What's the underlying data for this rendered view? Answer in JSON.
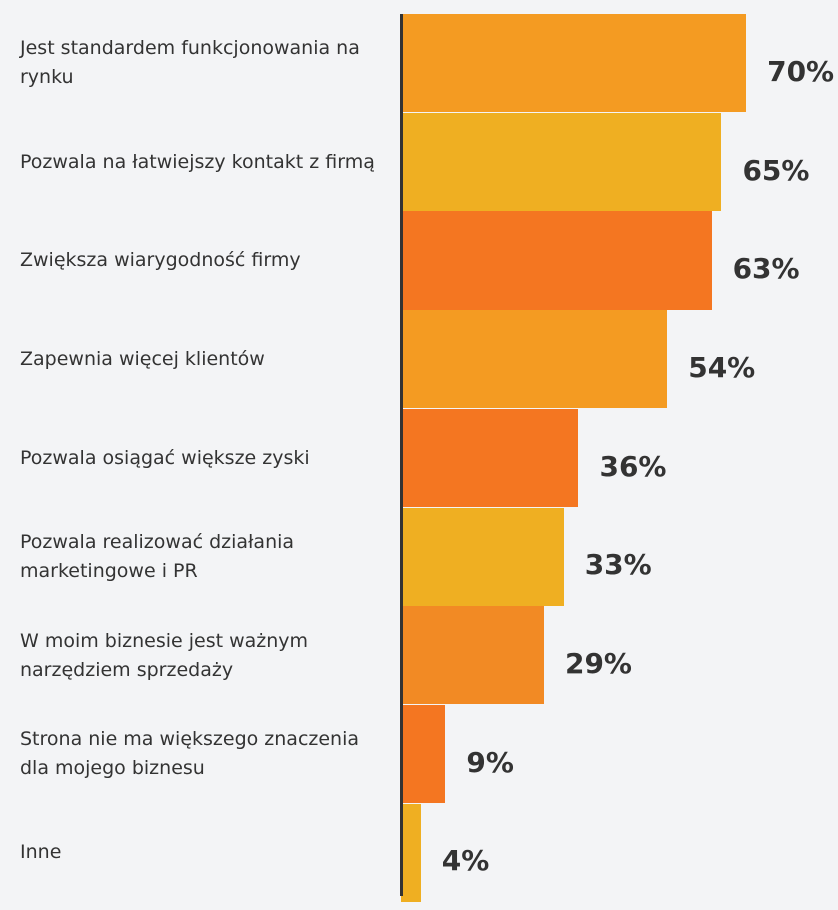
{
  "chart_data": {
    "type": "hbar",
    "categories": [
      "Jest standardem funkcjonowania na rynku",
      "Pozwala na łatwiejszy kontakt z firmą",
      "Zwiększa wiarygodność firmy",
      "Zapewnia więcej klientów",
      "Pozwala osiągać większe zyski",
      "Pozwala realizować działania marketingowe i PR",
      "W moim biznesie jest ważnym narzędziem sprzedaży",
      "Strona nie ma większego znaczenia dla mojego biznesu",
      "Inne"
    ],
    "values": [
      70,
      65,
      63,
      54,
      36,
      33,
      29,
      9,
      4
    ],
    "value_labels": [
      "70%",
      "65%",
      "63%",
      "54%",
      "36%",
      "33%",
      "29%",
      "9%",
      "4%"
    ],
    "colors": [
      "#f49b22",
      "#efaf22",
      "#f47621",
      "#f49b22",
      "#f47621",
      "#efaf22",
      "#f28a24",
      "#f47621",
      "#efaf22"
    ]
  }
}
